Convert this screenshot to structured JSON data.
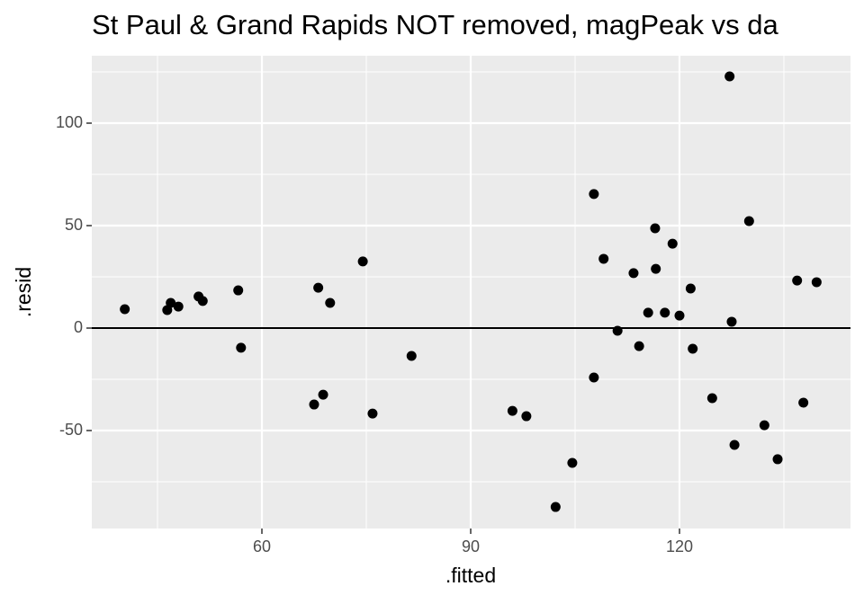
{
  "chart_data": {
    "type": "scatter",
    "title": "St Paul & Grand Rapids NOT removed, magPeak vs da",
    "x_label": ".fitted",
    "y_label": ".resid",
    "xlim": [
      35.56,
      144.57
    ],
    "ylim": [
      -97.8,
      132.9
    ],
    "xticks": [
      60,
      90,
      120
    ],
    "yticks": [
      -50,
      0,
      50,
      100
    ],
    "grid": true,
    "hline": 0,
    "series": [
      {
        "color": "#000000",
        "x": [
          40.3,
          46.4,
          46.9,
          48.0,
          50.9,
          51.5,
          56.6,
          57.0,
          67.5,
          68.1,
          68.8,
          69.8,
          74.5,
          75.9,
          81.5,
          96.0,
          98.0,
          102.2,
          104.6,
          107.7,
          107.7,
          109.1,
          111.1,
          113.4,
          114.2,
          115.5,
          116.5,
          116.6,
          117.9,
          119.0,
          120.0,
          121.6,
          121.9,
          124.7,
          127.2,
          127.5,
          127.9,
          130.0,
          132.2,
          134.1,
          136.9,
          137.8,
          139.7
        ],
        "values": [
          9.2,
          8.8,
          12.3,
          10.5,
          15.4,
          13.2,
          18.4,
          -9.6,
          -37.3,
          19.7,
          -32.5,
          12.3,
          32.5,
          -41.7,
          -13.6,
          -40.4,
          -43.0,
          -87.3,
          -65.8,
          65.4,
          -24.1,
          33.8,
          -1.3,
          26.8,
          -8.8,
          7.5,
          48.7,
          28.9,
          7.5,
          41.2,
          6.1,
          19.3,
          -10.1,
          -34.2,
          122.8,
          3.1,
          -57.0,
          52.2,
          -47.4,
          -64.0,
          23.2,
          -36.4,
          22.4
        ]
      }
    ]
  }
}
